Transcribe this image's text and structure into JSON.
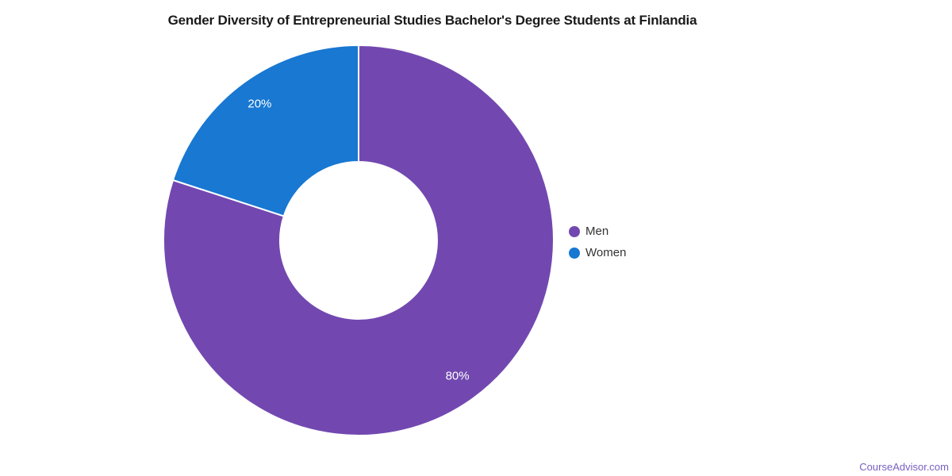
{
  "page": {
    "background": "#ffffff",
    "footer_link": "CourseAdvisor.com",
    "footer_color": "#7a60c2"
  },
  "chart_data": {
    "type": "pie",
    "subtype": "donut",
    "title": "Gender Diversity of Entrepreneurial Studies Bachelor's Degree Students at Finlandia",
    "series": [
      {
        "name": "Men",
        "value": 80,
        "label": "80%",
        "color": "#7248b0"
      },
      {
        "name": "Women",
        "value": 20,
        "label": "20%",
        "color": "#1878d2"
      }
    ],
    "total": 100,
    "start_angle_deg": -90,
    "direction": "clockwise",
    "slice_label_color": "#ffffff",
    "slice_separator_color": "#ffffff",
    "legend_position": "right",
    "legend_text_color": "#333333",
    "grid": false
  }
}
